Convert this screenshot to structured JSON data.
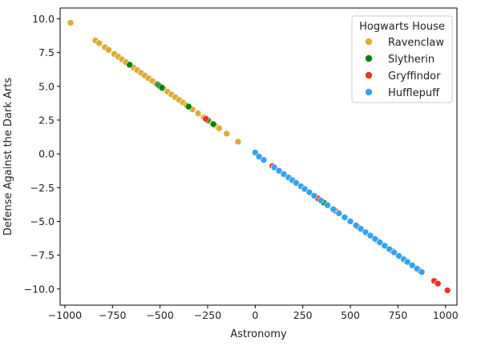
{
  "chart_data": {
    "type": "scatter",
    "title": "",
    "xlabel": "Astronomy",
    "ylabel": "Defense Against the Dark Arts",
    "xlim": [
      -1025,
      1060
    ],
    "ylim": [
      -11.2,
      10.8
    ],
    "xticks": [
      -1000,
      -750,
      -500,
      -250,
      0,
      250,
      500,
      750,
      1000
    ],
    "xtick_labels": [
      "−1000",
      "−750",
      "−500",
      "−250",
      "0",
      "250",
      "500",
      "750",
      "1000"
    ],
    "yticks": [
      10.0,
      7.5,
      5.0,
      2.5,
      0.0,
      -2.5,
      -5.0,
      -7.5,
      -10.0
    ],
    "ytick_labels": [
      "10.0",
      "7.5",
      "5.0",
      "2.5",
      "0.0",
      "−2.5",
      "−5.0",
      "−7.5",
      "−10.0"
    ],
    "grid": false,
    "legend": {
      "title": "Hogwarts House",
      "placement": "top-right",
      "entries": [
        "Ravenclaw",
        "Slytherin",
        "Gryffindor",
        "Hufflepuff"
      ]
    },
    "series": [
      {
        "name": "Ravenclaw",
        "color": "#DDAA33",
        "x": [
          -970,
          -840,
          -820,
          -790,
          -770,
          -740,
          -720,
          -700,
          -680,
          -660,
          -640,
          -620,
          -600,
          -580,
          -560,
          -540,
          -520,
          -500,
          -480,
          -460,
          -440,
          -420,
          -400,
          -380,
          -360,
          -330,
          -300,
          -270,
          -240,
          -210,
          -190,
          -150,
          -90
        ],
        "y": [
          9.7,
          8.4,
          8.2,
          7.9,
          7.7,
          7.4,
          7.2,
          7.0,
          6.8,
          6.6,
          6.4,
          6.2,
          6.0,
          5.8,
          5.6,
          5.4,
          5.2,
          5.0,
          4.8,
          4.6,
          4.4,
          4.2,
          4.0,
          3.8,
          3.6,
          3.3,
          3.0,
          2.7,
          2.4,
          2.1,
          1.9,
          1.5,
          0.9
        ]
      },
      {
        "name": "Slytherin",
        "color": "#008000",
        "x": [
          -660,
          -510,
          -500,
          -490,
          -350,
          -250,
          -220,
          360
        ],
        "y": [
          6.6,
          5.1,
          5.0,
          4.9,
          3.5,
          2.5,
          2.2,
          -3.6
        ]
      },
      {
        "name": "Gryffindor",
        "color": "#EE3322",
        "x": [
          -260,
          90,
          100,
          150,
          210,
          320,
          330,
          420,
          540,
          640,
          650,
          720,
          760,
          790,
          850,
          860,
          940,
          960,
          1010
        ],
        "y": [
          2.6,
          -0.9,
          -1.0,
          -1.5,
          -2.1,
          -3.2,
          -3.3,
          -4.2,
          -5.4,
          -6.4,
          -6.5,
          -7.2,
          -7.6,
          -7.9,
          -8.5,
          -8.6,
          -9.4,
          -9.6,
          -10.1
        ]
      },
      {
        "name": "Hufflepuff",
        "color": "#33A3EE",
        "x": [
          0,
          20,
          45,
          100,
          125,
          150,
          175,
          195,
          215,
          240,
          260,
          285,
          310,
          345,
          380,
          410,
          440,
          470,
          500,
          530,
          555,
          580,
          605,
          630,
          655,
          680,
          705,
          730,
          755,
          780,
          800,
          825,
          850,
          875
        ],
        "y": [
          0.1,
          -0.2,
          -0.45,
          -1.0,
          -1.25,
          -1.5,
          -1.75,
          -1.95,
          -2.15,
          -2.4,
          -2.6,
          -2.85,
          -3.1,
          -3.45,
          -3.8,
          -4.1,
          -4.4,
          -4.7,
          -5.0,
          -5.3,
          -5.55,
          -5.8,
          -6.05,
          -6.3,
          -6.55,
          -6.8,
          -7.05,
          -7.3,
          -7.55,
          -7.8,
          -8.0,
          -8.25,
          -8.5,
          -8.75
        ]
      }
    ]
  }
}
